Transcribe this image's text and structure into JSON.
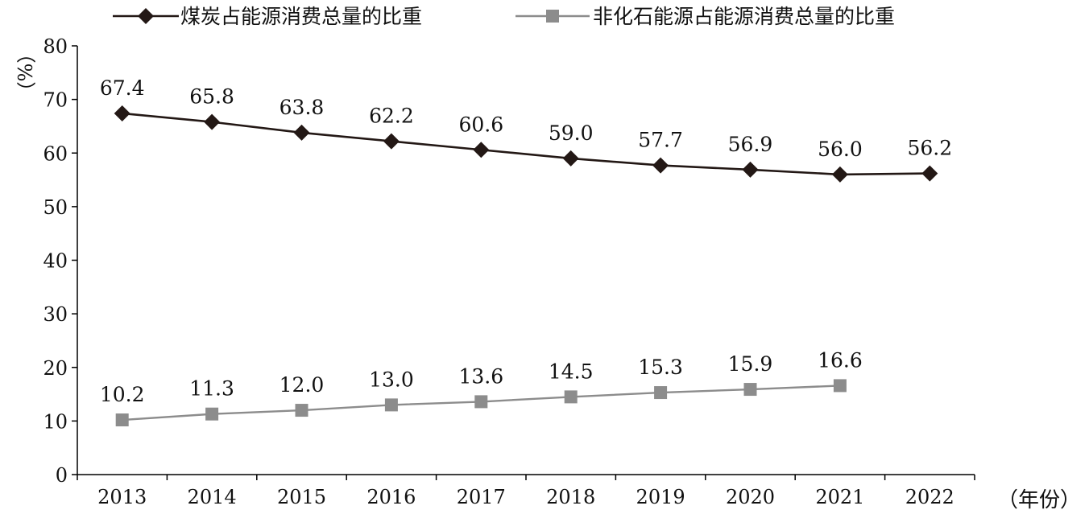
{
  "chart_data": {
    "type": "line",
    "x": [
      "2013",
      "2014",
      "2015",
      "2016",
      "2017",
      "2018",
      "2019",
      "2020",
      "2021",
      "2022"
    ],
    "series": [
      {
        "name": "煤炭占能源消费总量的比重",
        "values": [
          67.4,
          65.8,
          63.8,
          62.2,
          60.6,
          59.0,
          57.7,
          56.9,
          56.0,
          56.2
        ],
        "labels": [
          "67.4",
          "65.8",
          "63.8",
          "62.2",
          "60.6",
          "59.0",
          "57.7",
          "56.9",
          "56.0",
          "56.2"
        ],
        "color": "#231815",
        "marker": "diamond"
      },
      {
        "name": "非化石能源占能源消费总量的比重",
        "values": [
          10.2,
          11.3,
          12.0,
          13.0,
          13.6,
          14.5,
          15.3,
          15.9,
          16.6,
          null
        ],
        "labels": [
          "10.2",
          "11.3",
          "12.0",
          "13.0",
          "13.6",
          "14.5",
          "15.3",
          "15.9",
          "16.6",
          null
        ],
        "color": "#8c8c8c",
        "marker": "square"
      }
    ],
    "ylim": [
      0,
      80
    ],
    "yticks": [
      0,
      10,
      20,
      30,
      40,
      50,
      60,
      70,
      80
    ],
    "ylabel": "（%）",
    "xlabel": "（年份）",
    "legend": "top",
    "grid": false
  }
}
